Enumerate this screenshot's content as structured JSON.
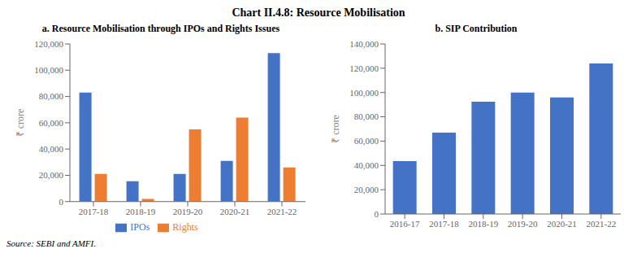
{
  "title": "Chart II.4.8: Resource Mobilisation",
  "annotations": [
    "Source: SEBI and AMFI."
  ],
  "chart_data": [
    {
      "type": "bar",
      "title": "a. Resource Mobilisation through IPOs and Rights Issues",
      "categories": [
        "2017-18",
        "2018-19",
        "2019-20",
        "2020-21",
        "2021-22"
      ],
      "series": [
        {
          "name": "IPOs",
          "color": "#4472C4",
          "values": [
            83000,
            15500,
            21000,
            31000,
            113000
          ]
        },
        {
          "name": "Rights",
          "color": "#ED7D31",
          "values": [
            21000,
            2000,
            55000,
            64000,
            26000
          ]
        }
      ],
      "ylabel": "₹ crore",
      "ylim": [
        0,
        120000
      ],
      "yticks": [
        0,
        {
          "value": 20000,
          "label": "20,000"
        },
        {
          "value": 40000,
          "label": "40,000"
        },
        {
          "value": 60000,
          "label": "60,000"
        },
        {
          "value": 80000,
          "label": "80,000"
        },
        {
          "value": 100000,
          "label": "100,000"
        },
        {
          "value": 120000,
          "label": "120,000"
        }
      ],
      "grid": false,
      "legend": "bottom"
    },
    {
      "type": "bar",
      "title": "b. SIP Contribution",
      "categories": [
        "2016-17",
        "2017-18",
        "2018-19",
        "2019-20",
        "2020-21",
        "2021-22"
      ],
      "values": [
        43500,
        67000,
        92500,
        100000,
        96000,
        124000
      ],
      "color": "#4472C4",
      "ylabel": "₹ crore",
      "ylim": [
        0,
        140000
      ],
      "yticks": [
        0,
        {
          "value": 20000,
          "label": "20,000"
        },
        {
          "value": 40000,
          "label": "40,000"
        },
        {
          "value": 60000,
          "label": "60,000"
        },
        {
          "value": 80000,
          "label": "80,000"
        },
        {
          "value": 100000,
          "label": "100,000"
        },
        {
          "value": 120000,
          "label": "120,000"
        },
        {
          "value": 140000,
          "label": "140,000"
        }
      ],
      "grid": false
    }
  ]
}
